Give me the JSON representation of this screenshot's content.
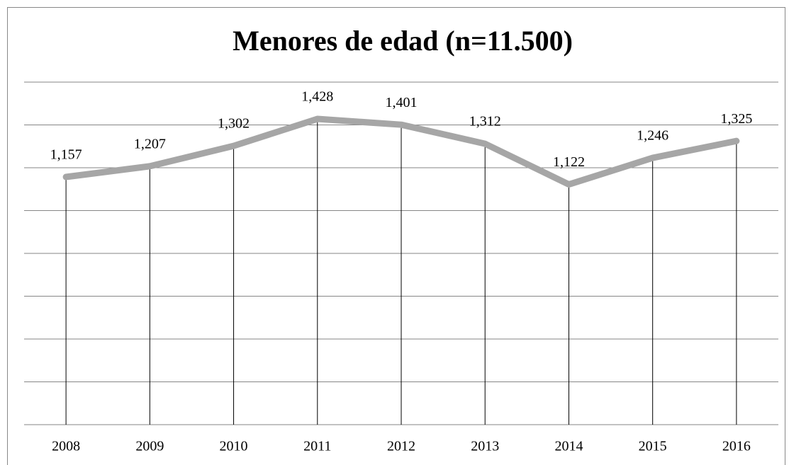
{
  "chart_data": {
    "type": "line",
    "title": "Menores de edad (n=11.500)",
    "categories": [
      "2008",
      "2009",
      "2010",
      "2011",
      "2012",
      "2013",
      "2014",
      "2015",
      "2016"
    ],
    "values": [
      1157,
      1207,
      1302,
      1428,
      1401,
      1312,
      1122,
      1246,
      1325
    ],
    "value_labels": [
      "1,157",
      "1,207",
      "1,302",
      "1,428",
      "1,401",
      "1,312",
      "1,122",
      "1,246",
      "1,325"
    ],
    "color": "#a6a6a6",
    "ylim": [
      0,
      1600
    ],
    "yticks": [
      0,
      200,
      400,
      600,
      800,
      1000,
      1200,
      1400,
      1600
    ],
    "grid": true
  }
}
